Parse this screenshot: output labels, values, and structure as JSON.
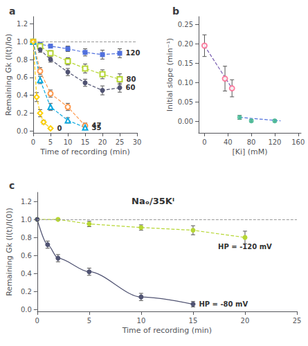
{
  "chart_data": [
    {
      "type": "line",
      "title": "a",
      "xlabel": "Time of recording (min)",
      "ylabel": "Remaining Gk (I(t)/Io)",
      "xlim": [
        0,
        30
      ],
      "ylim": [
        -0.02,
        1.28
      ],
      "xticks": [
        0,
        5,
        10,
        15,
        20,
        25,
        30
      ],
      "yticks": [
        {
          "value": 0.0,
          "label": "0.0"
        },
        {
          "value": 0.2,
          "label": "0.2"
        },
        {
          "value": 0.4,
          "label": "0.4"
        },
        {
          "value": 0.6,
          "label": "0.6"
        },
        {
          "value": 0.8,
          "label": "0.8"
        },
        {
          "value": 1.0,
          "label": "1.0"
        },
        {
          "value": 1.2,
          "label": "1.2"
        }
      ],
      "grid": false,
      "reference_y": 1.0,
      "series": [
        {
          "name": "120",
          "marker": "filled square",
          "line_style": "dashed",
          "x": [
            0,
            2,
            5,
            10,
            15,
            20,
            25
          ],
          "values": [
            1.0,
            0.97,
            0.95,
            0.92,
            0.88,
            0.855,
            0.87
          ],
          "yerr": [
            0.01,
            0.02,
            0.02,
            0.03,
            0.04,
            0.05,
            0.05
          ]
        },
        {
          "name": "80",
          "marker": "open square",
          "line_style": "dashed",
          "x": [
            0,
            2,
            5,
            10,
            15,
            20,
            25
          ],
          "values": [
            1.0,
            0.95,
            0.87,
            0.78,
            0.7,
            0.635,
            0.58
          ],
          "yerr": [
            0.01,
            0.03,
            0.03,
            0.04,
            0.05,
            0.05,
            0.06
          ]
        },
        {
          "name": "60",
          "marker": "filled circle",
          "line_style": "dashed",
          "x": [
            0,
            2,
            5,
            10,
            15,
            20,
            25
          ],
          "values": [
            1.0,
            0.91,
            0.8,
            0.66,
            0.54,
            0.455,
            0.485
          ],
          "yerr": [
            0.01,
            0.03,
            0.03,
            0.04,
            0.04,
            0.05,
            0.05
          ]
        },
        {
          "name": "47",
          "marker": "open circle",
          "line_style": "dashed",
          "x": [
            0,
            2,
            5,
            10,
            15
          ],
          "values": [
            1.0,
            0.67,
            0.42,
            0.27,
            0.06
          ],
          "yerr": [
            0.01,
            0.04,
            0.04,
            0.04,
            0.03
          ]
        },
        {
          "name": "35",
          "marker": "open triangle",
          "line_style": "dashed",
          "x": [
            0,
            2,
            5,
            10,
            15
          ],
          "values": [
            1.0,
            0.57,
            0.27,
            0.12,
            0.04
          ],
          "yerr": [
            0.01,
            0.04,
            0.04,
            0.03,
            0.02
          ]
        },
        {
          "name": "0",
          "marker": "open diamond",
          "line_style": "dashed",
          "x": [
            0,
            1,
            2,
            3,
            5
          ],
          "values": [
            1.0,
            0.38,
            0.2,
            0.1,
            0.03
          ],
          "yerr": [
            0.01,
            0.05,
            0.04,
            0.02,
            0.01
          ]
        }
      ]
    },
    {
      "type": "scatter",
      "title": "b",
      "xlabel": "[Ki] (mM)",
      "ylabel": "Initial slope (min⁻¹)",
      "xlim": [
        -10,
        165
      ],
      "ylim": [
        -0.03,
        0.27
      ],
      "xticks": [
        0,
        40,
        80,
        120,
        160
      ],
      "yticks": [
        {
          "value": 0.0,
          "label": "0.00"
        },
        {
          "value": 0.05,
          "label": "0.05"
        },
        {
          "value": 0.1,
          "label": "0.10"
        },
        {
          "value": 0.15,
          "label": "0.15"
        },
        {
          "value": 0.2,
          "label": "0.20"
        },
        {
          "value": 0.25,
          "label": "0.25"
        }
      ],
      "grid": false,
      "series": [
        {
          "type": "scatter",
          "marker": "open circle",
          "x": [
            0,
            35,
            47
          ],
          "values": [
            0.195,
            0.11,
            0.085
          ],
          "yerr": [
            0.028,
            0.032,
            0.022
          ]
        },
        {
          "type": "line",
          "line_style": "dashed",
          "x": [
            0,
            47
          ],
          "values": [
            0.195,
            0.085
          ]
        },
        {
          "type": "scatter",
          "marker": "filled circle",
          "x": [
            60,
            80,
            120
          ],
          "values": [
            0.01,
            0.001,
            0.001
          ],
          "yerr": [
            0.005,
            0.003,
            0.003
          ]
        },
        {
          "type": "line",
          "line_style": "dashed",
          "x": [
            60,
            130
          ],
          "values": [
            0.01,
            0.001
          ]
        }
      ]
    },
    {
      "type": "line",
      "title": "c",
      "xlabel": "Time of recording (min)",
      "ylabel": "Remaining Gk (I(t)/I(0))",
      "xlim": [
        0,
        25
      ],
      "ylim": [
        -0.02,
        1.3
      ],
      "xticks": [
        0,
        5,
        10,
        15,
        20,
        25
      ],
      "yticks": [
        {
          "value": 0.0,
          "label": "0.0"
        },
        {
          "value": 0.2,
          "label": "0.2"
        },
        {
          "value": 0.4,
          "label": "0.4"
        },
        {
          "value": 0.6,
          "label": "0.6"
        },
        {
          "value": 0.8,
          "label": "0.8"
        },
        {
          "value": 1.0,
          "label": "1.0"
        },
        {
          "value": 1.2,
          "label": "1.2"
        }
      ],
      "grid": false,
      "reference_y": 1.0,
      "annotations": [
        "Naₒ/35Kᴵ"
      ],
      "series": [
        {
          "name": "HP = -120 mV",
          "marker": "filled circle",
          "line_style": "dashed",
          "x": [
            0,
            2,
            5,
            10,
            15,
            20
          ],
          "values": [
            1.0,
            1.0,
            0.95,
            0.91,
            0.88,
            0.8
          ],
          "yerr": [
            0.01,
            0.01,
            0.03,
            0.03,
            0.05,
            0.07
          ]
        },
        {
          "name": "HP = -80 mV",
          "marker": "filled circle",
          "line_style": "solid",
          "x": [
            0,
            1,
            2,
            5,
            10,
            15
          ],
          "values": [
            1.0,
            0.72,
            0.57,
            0.42,
            0.14,
            0.06
          ],
          "yerr": [
            0.01,
            0.04,
            0.04,
            0.04,
            0.04,
            0.03
          ]
        }
      ]
    }
  ]
}
